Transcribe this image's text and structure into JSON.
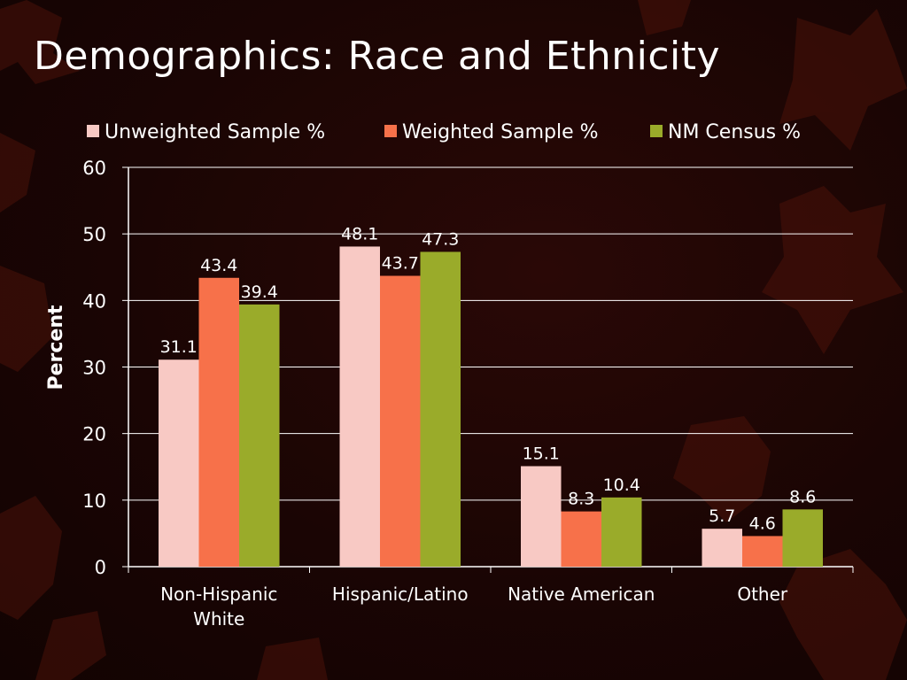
{
  "slide": {
    "title": "Demographics: Race and Ethnicity"
  },
  "colors": {
    "background": "#1a0504",
    "series": [
      "#f8c9c4",
      "#f7714a",
      "#9aab2a"
    ],
    "axis": "#ffffff",
    "grid": "#ffffff",
    "text": "#ffffff"
  },
  "chart_data": {
    "type": "bar",
    "title": "",
    "xlabel": "",
    "ylabel": "Percent",
    "ylim": [
      0,
      60
    ],
    "yticks": [
      0,
      10,
      20,
      30,
      40,
      50,
      60
    ],
    "grid": true,
    "legend_position": "top",
    "categories": [
      [
        "Non-Hispanic",
        "White"
      ],
      [
        "Hispanic/Latino"
      ],
      [
        "Native American"
      ],
      [
        "Other"
      ]
    ],
    "series": [
      {
        "name": "Unweighted Sample %",
        "values": [
          31.1,
          48.1,
          15.1,
          5.7
        ]
      },
      {
        "name": "Weighted Sample %",
        "values": [
          43.4,
          43.7,
          8.3,
          4.6
        ]
      },
      {
        "name": "NM Census %",
        "values": [
          39.4,
          47.3,
          10.4,
          8.6
        ]
      }
    ]
  }
}
